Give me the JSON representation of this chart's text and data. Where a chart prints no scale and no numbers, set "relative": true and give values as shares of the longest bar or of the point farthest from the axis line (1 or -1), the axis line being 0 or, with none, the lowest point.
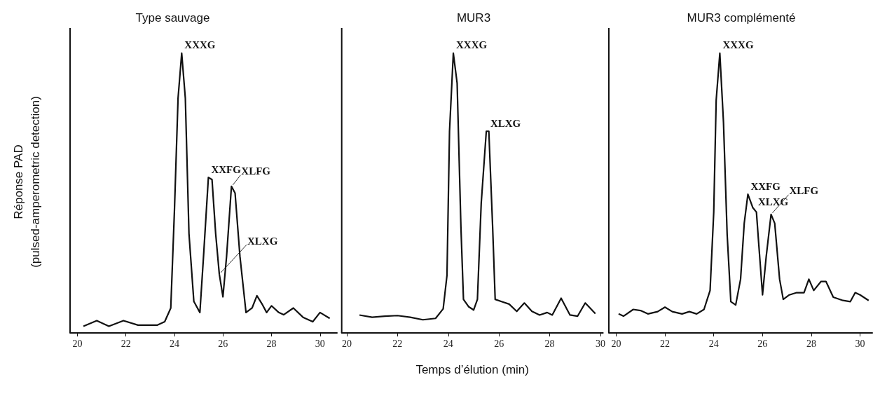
{
  "chart_data": [
    {
      "type": "line",
      "title": "Type sauvage",
      "ylabel": "Réponse PAD\n(pulsed-amperometric detection)",
      "relative": true,
      "xlim": [
        19.7,
        30.7
      ],
      "xticks": [
        20,
        22,
        24,
        26,
        28,
        30
      ],
      "series": [
        {
          "color": "#111111",
          "x": [
            20.25,
            20.8,
            21.3,
            21.9,
            22.5,
            23.3,
            23.6,
            23.85,
            24.0,
            24.15,
            24.3,
            24.45,
            24.6,
            24.8,
            25.05,
            25.2,
            25.4,
            25.55,
            25.7,
            25.85,
            26.0,
            26.15,
            26.35,
            26.5,
            26.7,
            26.95,
            27.2,
            27.4,
            27.6,
            27.8,
            28.0,
            28.3,
            28.5,
            28.9,
            29.3,
            29.7,
            30.0,
            30.4
          ],
          "values": [
            0.024,
            0.044,
            0.024,
            0.044,
            0.028,
            0.028,
            0.04,
            0.089,
            0.435,
            0.839,
            1.0,
            0.839,
            0.355,
            0.113,
            0.073,
            0.274,
            0.556,
            0.548,
            0.355,
            0.21,
            0.129,
            0.274,
            0.524,
            0.5,
            0.274,
            0.073,
            0.089,
            0.133,
            0.105,
            0.073,
            0.097,
            0.073,
            0.065,
            0.089,
            0.056,
            0.04,
            0.073,
            0.052
          ]
        }
      ],
      "annotations": [
        {
          "text": "XXXG",
          "x": 24.3,
          "y": 1.0
        },
        {
          "text": "XXFG",
          "x": 25.4,
          "y": 0.556
        },
        {
          "text": "XLFG",
          "x": 26.35,
          "y": 0.524
        },
        {
          "text": "XLXG",
          "x": 25.85,
          "y": 0.21
        }
      ]
    },
    {
      "type": "line",
      "title": "MUR3",
      "xlabel": "Temps d’élution (min)",
      "relative": true,
      "xlim": [
        19.8,
        30.1
      ],
      "xticks": [
        20,
        22,
        24,
        26,
        28,
        30
      ],
      "series": [
        {
          "color": "#111111",
          "x": [
            20.5,
            21.0,
            21.5,
            22.0,
            22.5,
            23.0,
            23.5,
            23.8,
            23.95,
            24.05,
            24.2,
            24.35,
            24.5,
            24.6,
            24.8,
            25.0,
            25.15,
            25.3,
            25.5,
            25.6,
            25.75,
            25.85,
            26.1,
            26.4,
            26.7,
            27.0,
            27.3,
            27.6,
            27.9,
            28.1,
            28.45,
            28.8,
            29.1,
            29.4,
            29.8
          ],
          "values": [
            0.064,
            0.056,
            0.06,
            0.062,
            0.056,
            0.047,
            0.052,
            0.086,
            0.206,
            0.721,
            1.0,
            0.893,
            0.378,
            0.12,
            0.094,
            0.082,
            0.12,
            0.464,
            0.721,
            0.721,
            0.378,
            0.12,
            0.112,
            0.103,
            0.077,
            0.107,
            0.077,
            0.064,
            0.073,
            0.064,
            0.124,
            0.064,
            0.06,
            0.107,
            0.069
          ]
        }
      ],
      "annotations": [
        {
          "text": "XXXG",
          "x": 24.2,
          "y": 1.0
        },
        {
          "text": "XLXG",
          "x": 25.55,
          "y": 0.721
        }
      ]
    },
    {
      "type": "line",
      "title": "MUR3 complémenté",
      "relative": true,
      "xlim": [
        19.7,
        30.5
      ],
      "xticks": [
        20,
        22,
        24,
        26,
        28,
        30
      ],
      "series": [
        {
          "color": "#111111",
          "x": [
            20.1,
            20.3,
            20.7,
            21.0,
            21.3,
            21.7,
            22.0,
            22.3,
            22.7,
            23.0,
            23.3,
            23.6,
            23.85,
            24.0,
            24.1,
            24.25,
            24.4,
            24.55,
            24.7,
            24.9,
            25.1,
            25.25,
            25.4,
            25.6,
            25.75,
            25.85,
            26.0,
            26.15,
            26.35,
            26.5,
            26.7,
            26.85,
            27.1,
            27.4,
            27.7,
            27.9,
            28.1,
            28.4,
            28.6,
            28.9,
            29.3,
            29.6,
            29.8,
            30.0,
            30.35
          ],
          "values": [
            0.068,
            0.06,
            0.084,
            0.08,
            0.068,
            0.076,
            0.092,
            0.076,
            0.068,
            0.076,
            0.068,
            0.084,
            0.152,
            0.432,
            0.832,
            1.0,
            0.752,
            0.352,
            0.112,
            0.1,
            0.192,
            0.392,
            0.496,
            0.448,
            0.432,
            0.312,
            0.136,
            0.272,
            0.424,
            0.392,
            0.192,
            0.12,
            0.136,
            0.144,
            0.144,
            0.192,
            0.152,
            0.184,
            0.184,
            0.128,
            0.116,
            0.112,
            0.144,
            0.136,
            0.116
          ]
        }
      ],
      "annotations": [
        {
          "text": "XXXG",
          "x": 24.25,
          "y": 1.0
        },
        {
          "text": "XXFG",
          "x": 25.4,
          "y": 0.496
        },
        {
          "text": "XLXG",
          "x": 25.7,
          "y": 0.44
        },
        {
          "text": "XLFG",
          "x": 26.35,
          "y": 0.424
        }
      ]
    }
  ]
}
